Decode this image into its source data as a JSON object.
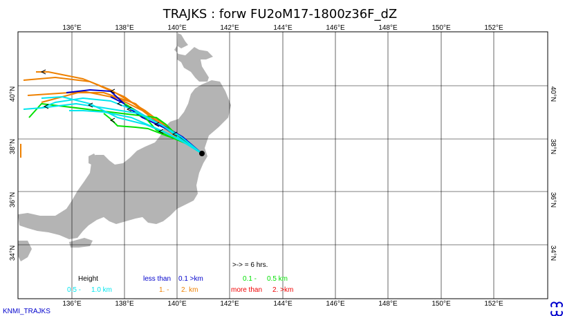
{
  "title": "TRAJKS : forw FU2oM17-1800z36F_dZ",
  "footer": {
    "left": "KNMI_TRAJKS"
  },
  "lon_labels": [
    "136°E",
    "138°E",
    "140°E",
    "142°E",
    "144°E",
    "146°E",
    "148°E",
    "150°E",
    "152°E"
  ],
  "lat_labels": [
    "40°N",
    "38°N",
    "36°N",
    "34°N"
  ],
  "legend": {
    "height": "Height",
    "arrow_note": ">-> = 6 hrs.",
    "classes": [
      {
        "a": "less than",
        "b": "0.1 >km",
        "color": "#0000cc"
      },
      {
        "a": "0.1 -",
        "b": "0.5 km",
        "color": "#00e000"
      },
      {
        "a": "0.5 -",
        "b": "1.0 km",
        "color": "#00e5ee"
      },
      {
        "a": "1. -",
        "b": "2. km",
        "color": "#ee8000"
      },
      {
        "a": "more than",
        "b": "2. >km",
        "color": "#ee0000"
      }
    ]
  },
  "colors": {
    "land": "#b4b4b4",
    "grid": "#000000"
  }
}
